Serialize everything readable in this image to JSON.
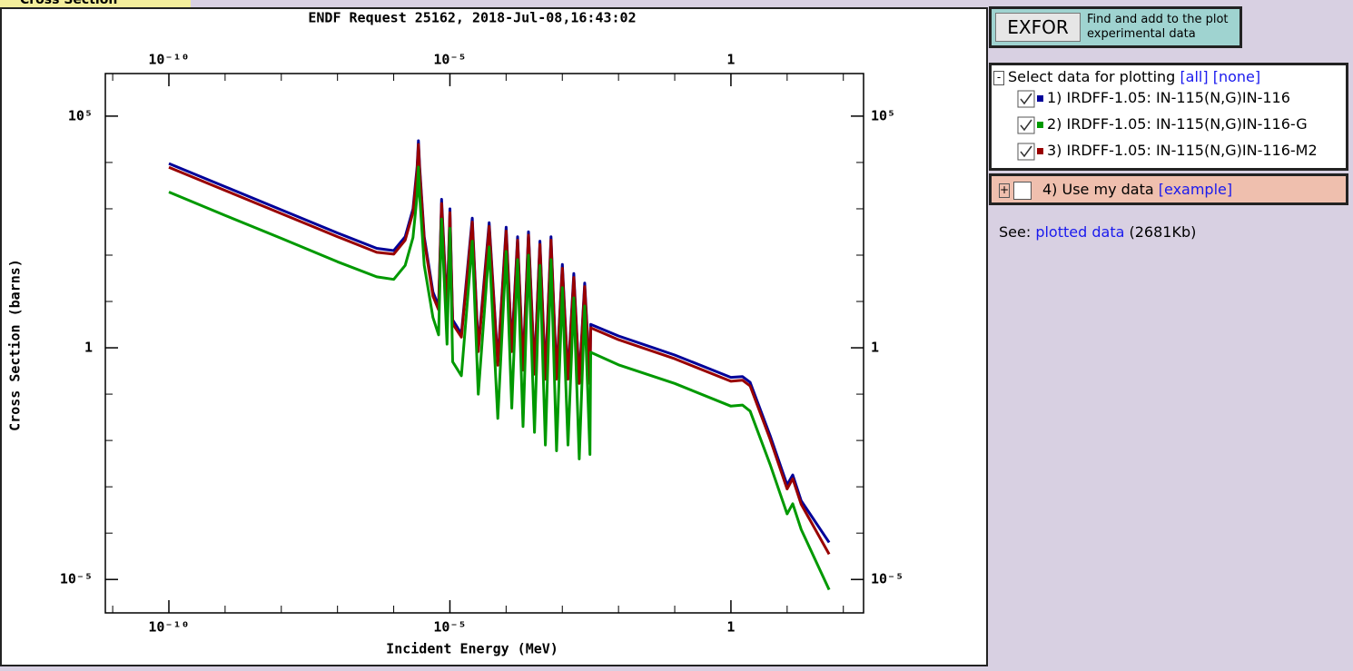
{
  "ui": {
    "tab": "Cross Section",
    "exfor_button": "EXFOR",
    "exfor_text": [
      "Find and add to the plot",
      "experimental data"
    ],
    "select": {
      "toggle": "-",
      "label": "Select data for plotting",
      "all": "[all]",
      "none": "[none]"
    },
    "my_data": {
      "toggle": "+",
      "label": "4) Use my data",
      "example": "[example]"
    },
    "see": {
      "label": "See:",
      "link": "plotted data",
      "size": "(2681Kb)"
    }
  },
  "chart_data": {
    "type": "line",
    "title": "ENDF Request 25162, 2018-Jul-08,16:43:02",
    "x_label": "Incident Energy (MeV)",
    "y_label": "Cross Section (barns)",
    "log_x": true,
    "log_y": true,
    "xlim": [
      7.4e-12,
      229
    ],
    "ylim": [
      1.9e-06,
      830000
    ],
    "xticks": [
      {
        "value": 1e-10,
        "label": "10⁻¹⁰"
      },
      {
        "value": 1e-05,
        "label": "10⁻⁵"
      },
      1
    ],
    "yticks": [
      {
        "value": 1e-05,
        "label": "10⁻⁵"
      },
      1,
      {
        "value": 100000,
        "label": "10⁵"
      }
    ],
    "xminor_ticks": [
      1e-11,
      1e-09,
      1e-08,
      1e-07,
      1e-06,
      0.0001,
      0.001,
      0.01,
      0.1,
      10,
      100
    ],
    "yminor_ticks": [
      0.0001,
      0.001,
      0.01,
      0.1,
      10,
      100,
      1000,
      10000
    ],
    "x": [
      1e-10,
      1e-09,
      1e-08,
      1e-07,
      5e-07,
      1e-06,
      1.6e-06,
      2.2e-06,
      2.6e-06,
      2.75e-06,
      2.9e-06,
      3.5e-06,
      5e-06,
      6.3e-06,
      7.1e-06,
      8.9e-06,
      1e-05,
      1.12e-05,
      1.6e-05,
      2.5e-05,
      3.2e-05,
      5e-05,
      7.1e-05,
      0.0001,
      0.000126,
      0.00016,
      0.0002,
      0.00025,
      0.00032,
      0.0004,
      0.0005,
      0.00063,
      0.00079,
      0.001,
      0.00126,
      0.0016,
      0.002,
      0.0025,
      0.0031,
      0.0032,
      0.01,
      0.1,
      1,
      1.6,
      2.2,
      5,
      10,
      12.6,
      17.8,
      56
    ],
    "series": [
      {
        "name": "1) IRDFF-1.05: IN-115(N,G)IN-116",
        "color": "#000099",
        "values": [
          9500,
          3000,
          950,
          300,
          140,
          125,
          250,
          1000,
          7900,
          29500,
          7900,
          250,
          16,
          8,
          1600,
          6.3,
          1000,
          4,
          2,
          630,
          1,
          500,
          0.5,
          400,
          1,
          250,
          0.4,
          320,
          0.32,
          200,
          0.25,
          250,
          0.25,
          63,
          0.25,
          40,
          0.2,
          25,
          0.2,
          3.2,
          1.8,
          0.7,
          0.23,
          0.24,
          0.18,
          0.0126,
          0.0011,
          0.0018,
          0.0005,
          6.3e-05
        ]
      },
      {
        "name": "2) IRDFF-1.05: IN-115(N,G)IN-116-G",
        "color": "#009900",
        "values": [
          2300,
          720,
          230,
          72,
          34,
          30,
          60,
          240,
          1900,
          8000,
          1900,
          60,
          4.5,
          1.9,
          600,
          1.2,
          380,
          0.5,
          0.25,
          200,
          0.1,
          150,
          0.03,
          120,
          0.05,
          80,
          0.02,
          100,
          0.015,
          60,
          0.008,
          80,
          0.006,
          20,
          0.008,
          12,
          0.004,
          8,
          0.005,
          0.8,
          0.43,
          0.17,
          0.055,
          0.058,
          0.043,
          0.003,
          0.00026,
          0.00043,
          0.00012,
          6e-06
        ]
      },
      {
        "name": "3) IRDFF-1.05: IN-115(N,G)IN-116-M2",
        "color": "#990000",
        "values": [
          7900,
          2500,
          790,
          250,
          115,
          105,
          210,
          830,
          6600,
          24500,
          6600,
          210,
          13,
          6.6,
          1300,
          5.2,
          830,
          3.3,
          1.7,
          520,
          0.83,
          420,
          0.42,
          330,
          0.83,
          210,
          0.33,
          270,
          0.27,
          170,
          0.21,
          210,
          0.21,
          52,
          0.21,
          33,
          0.17,
          21,
          0.17,
          2.7,
          1.5,
          0.58,
          0.19,
          0.2,
          0.15,
          0.0105,
          0.0009,
          0.0015,
          0.00042,
          3.5e-05
        ]
      }
    ]
  }
}
